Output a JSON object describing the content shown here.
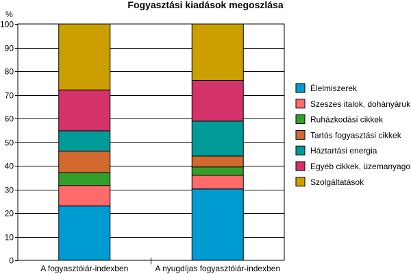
{
  "chart_data": {
    "type": "bar",
    "stacked": true,
    "title": "Fogyasztási kiadások megoszlása",
    "ylabel": "%",
    "ylim": [
      0,
      100
    ],
    "yticks": [
      0,
      10,
      20,
      30,
      40,
      50,
      60,
      70,
      80,
      90,
      100
    ],
    "grid": true,
    "legend_position": "right",
    "categories": [
      "A fogyasztóiár-indexben",
      "A nyugdíjas fogyasztóiár-indexben"
    ],
    "series": [
      {
        "name": "Élelmiszerek",
        "color": "#009BD1",
        "values": [
          23.0,
          30.2
        ]
      },
      {
        "name": "Szeszes italok, dohányáruk",
        "color": "#FF6B6B",
        "values": [
          8.7,
          5.8
        ]
      },
      {
        "name": "Ruházkodási cikkek",
        "color": "#33A02C",
        "values": [
          5.4,
          3.5
        ]
      },
      {
        "name": "Tartós fogyasztási cikkek",
        "color": "#D2692E",
        "values": [
          9.1,
          4.6
        ]
      },
      {
        "name": "Háztartási energia",
        "color": "#009B99",
        "values": [
          8.6,
          14.8
        ]
      },
      {
        "name": "Egyéb cikkek, üzemanyagok",
        "color": "#D4336A",
        "values": [
          17.3,
          17.2
        ]
      },
      {
        "name": "Szolgáltatások",
        "color": "#CC9F00",
        "values": [
          27.9,
          23.9
        ]
      }
    ]
  }
}
